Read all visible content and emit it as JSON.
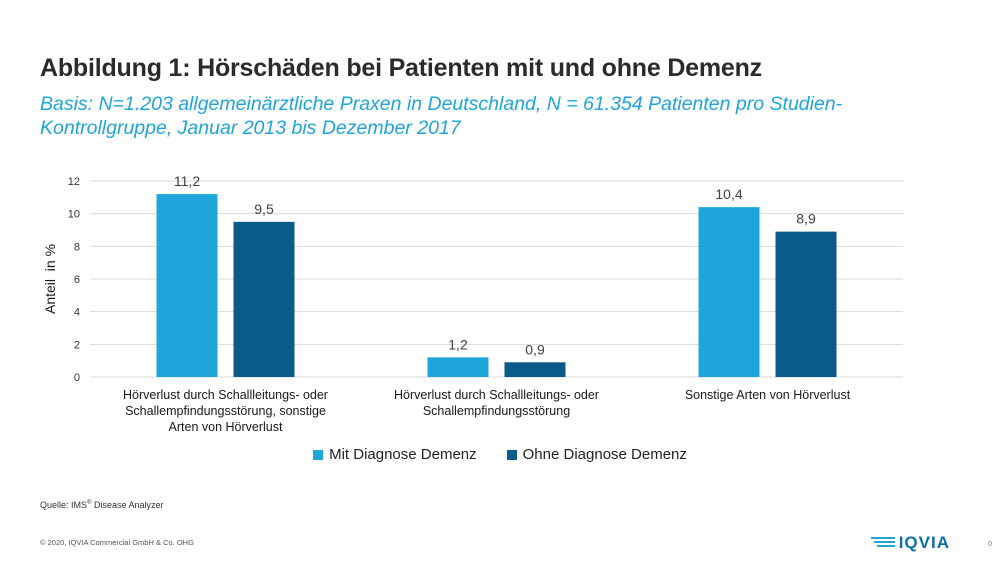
{
  "header": {
    "title": "Abbildung 1: Hörschäden bei Patienten mit und ohne Demenz",
    "subtitle": "Basis: N=1.203 allgemeinärztliche Praxen in Deutschland, N = 61.354 Patienten pro Studien-Kontrollgruppe, Januar 2013 bis Dezember 2017"
  },
  "chart_data": {
    "type": "bar",
    "title": "",
    "xlabel": "",
    "ylabel": "Anteil  in %",
    "ylim": [
      0,
      12
    ],
    "yticks": [
      "0",
      "2",
      "4",
      "6",
      "8",
      "10",
      "12"
    ],
    "grid": true,
    "legend_position": "bottom",
    "categories": [
      [
        "Hörverlust durch Schallleitungs- oder",
        "Schallempfindungsstörung, sonstige",
        "Arten von Hörverlust"
      ],
      [
        "Hörverlust durch Schallleitungs- oder",
        "Schallempfindungsstörung"
      ],
      [
        "Sonstige Arten von Hörverlust"
      ]
    ],
    "series": [
      {
        "name": "Mit Diagnose Demenz",
        "values": [
          11.2,
          1.2,
          10.4
        ],
        "labels": [
          "11,2",
          "1,2",
          "10,4"
        ],
        "color": "#1ea5d9"
      },
      {
        "name": "Ohne Diagnose Demenz",
        "values": [
          9.5,
          0.9,
          8.9
        ],
        "labels": [
          "9,5",
          "0,9",
          "8,9"
        ],
        "color": "#0a5a8a"
      }
    ]
  },
  "footer": {
    "source_prefix": "Quelle: IMS",
    "source_sup": "®",
    "source_suffix": " Disease Analyzer",
    "copyright": "© 2020, IQVIA Commercial GmbH & Co. OHG",
    "logo_text": "IQVIA",
    "page_number": "0"
  }
}
